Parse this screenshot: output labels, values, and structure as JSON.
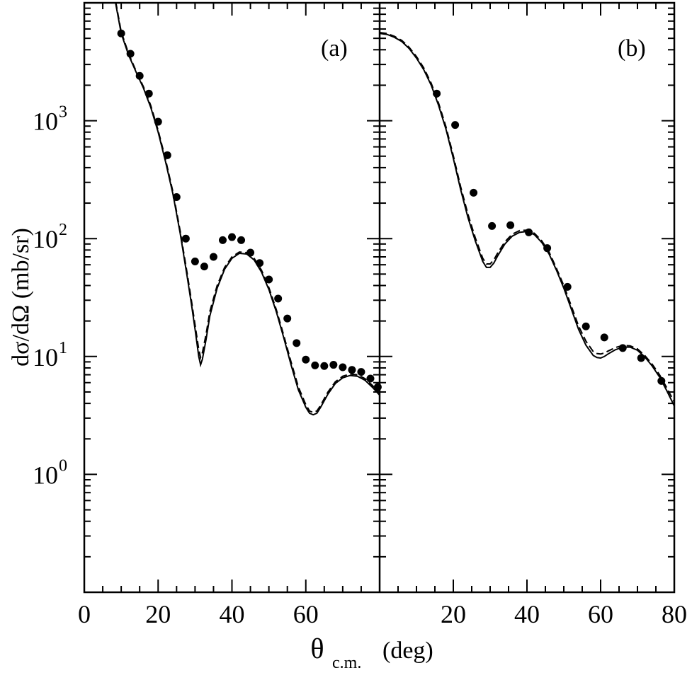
{
  "chart_data": [
    {
      "type": "scatter",
      "panel": "(a)",
      "title": "",
      "xlabel_main": "θ",
      "xlabel_sub": "c.m.",
      "xlabel_unit": "(deg)",
      "ylabel": "dσ/dΩ (mb/sr)",
      "xlim": [
        0,
        80
      ],
      "ylim": [
        0.1,
        10000
      ],
      "yscale": "log",
      "x_ticks": [
        "0",
        "20",
        "40",
        "60"
      ],
      "y_ticks": [
        {
          "base": "10",
          "exp": "0"
        },
        {
          "base": "10",
          "exp": "1"
        },
        {
          "base": "10",
          "exp": "2"
        },
        {
          "base": "10",
          "exp": "3"
        }
      ],
      "series": [
        {
          "style": "points",
          "x": [
            10,
            12.5,
            15,
            17.5,
            20,
            22.5,
            25,
            27.5,
            30,
            32.5,
            35,
            37.5,
            40,
            42.5,
            45,
            47.5,
            50,
            52.5,
            55,
            57.5,
            60,
            62.5,
            65,
            67.5,
            70,
            72.5,
            75,
            77.5,
            79.5
          ],
          "y": [
            5500,
            3700,
            2400,
            1700,
            980,
            510,
            225,
            100,
            64,
            58,
            70,
            97,
            103,
            97,
            76,
            62,
            45,
            31,
            21,
            13,
            9.4,
            8.4,
            8.3,
            8.5,
            8.1,
            7.7,
            7.4,
            6.5,
            5.5
          ]
        },
        {
          "style": "solid",
          "x": [
            8,
            10,
            12,
            14,
            16,
            18,
            20,
            22,
            24,
            26,
            28,
            29,
            30,
            31,
            31.5,
            32,
            33,
            34,
            36,
            38,
            40,
            42,
            44,
            46,
            48,
            50,
            52,
            54,
            56,
            58,
            60,
            61,
            62,
            63,
            64,
            66,
            68,
            70,
            72,
            74,
            76,
            78,
            80
          ],
          "y": [
            12000,
            5500,
            3600,
            2600,
            1900,
            1300,
            800,
            450,
            240,
            110,
            45,
            28,
            17,
            10,
            8.5,
            9.5,
            14,
            22,
            38,
            55,
            68,
            75,
            74,
            66,
            52,
            37,
            24,
            14.5,
            8.5,
            5.2,
            3.7,
            3.3,
            3.2,
            3.3,
            3.7,
            4.8,
            5.9,
            6.6,
            6.9,
            6.8,
            6.3,
            5.5,
            4.7
          ]
        },
        {
          "style": "dashed",
          "x": [
            8,
            10,
            12,
            14,
            16,
            18,
            20,
            22,
            24,
            26,
            28,
            29,
            30,
            31,
            31.5,
            32,
            33,
            34,
            36,
            38,
            40,
            42,
            44,
            46,
            48,
            50,
            52,
            54,
            56,
            58,
            60,
            61,
            62,
            63,
            64,
            66,
            68,
            70,
            72,
            74,
            76,
            78,
            80
          ],
          "y": [
            12500,
            5700,
            3700,
            2650,
            1950,
            1350,
            830,
            470,
            250,
            115,
            48,
            30,
            18.5,
            11.5,
            9.8,
            10.8,
            15.5,
            24,
            40,
            57,
            70,
            77,
            76,
            68,
            54,
            38.5,
            25,
            15.2,
            9,
            5.5,
            3.9,
            3.45,
            3.35,
            3.45,
            3.85,
            5,
            6.1,
            6.8,
            7.1,
            7,
            6.5,
            5.7,
            4.9
          ]
        }
      ]
    },
    {
      "type": "scatter",
      "panel": "(b)",
      "title": "",
      "xlim": [
        0,
        80
      ],
      "ylim": [
        0.1,
        10000
      ],
      "yscale": "log",
      "x_ticks": [
        "20",
        "40",
        "60",
        "80"
      ],
      "series": [
        {
          "style": "points",
          "x": [
            15.5,
            20.5,
            25.5,
            30.5,
            35.5,
            40.5,
            45.5,
            51,
            56,
            61,
            66,
            71,
            76.5
          ],
          "y": [
            1700,
            920,
            245,
            128,
            130,
            113,
            83,
            39,
            18,
            14.5,
            11.8,
            9.7,
            6.2
          ]
        },
        {
          "style": "solid",
          "x": [
            0,
            2,
            4,
            6,
            8,
            10,
            12,
            14,
            16,
            18,
            20,
            22,
            24,
            26,
            27,
            28,
            29,
            30,
            31,
            32,
            34,
            36,
            38,
            40,
            42,
            44,
            46,
            48,
            50,
            52,
            54,
            56,
            58,
            59,
            60,
            61,
            62,
            64,
            66,
            68,
            70,
            72,
            74,
            76,
            78,
            80
          ],
          "y": [
            5500,
            5400,
            5100,
            4700,
            4100,
            3400,
            2700,
            2000,
            1350,
            850,
            480,
            260,
            150,
            95,
            78,
            64,
            57,
            57,
            62,
            71,
            90,
            105,
            113,
            115,
            108,
            93,
            74,
            54,
            38,
            25.5,
            17,
            12.5,
            10.2,
            9.8,
            9.7,
            10,
            10.5,
            11.4,
            12,
            12,
            11.3,
            9.9,
            8.3,
            6.7,
            5.1,
            3.8
          ]
        },
        {
          "style": "dashed",
          "x": [
            0,
            2,
            4,
            6,
            8,
            10,
            12,
            14,
            16,
            18,
            20,
            22,
            24,
            26,
            27,
            28,
            29,
            30,
            31,
            32,
            34,
            36,
            38,
            40,
            42,
            44,
            46,
            48,
            50,
            52,
            54,
            56,
            58,
            59,
            60,
            61,
            62,
            64,
            66,
            68,
            70,
            72,
            74,
            76,
            78,
            80
          ],
          "y": [
            5600,
            5500,
            5200,
            4800,
            4200,
            3500,
            2800,
            2080,
            1410,
            890,
            505,
            275,
            160,
            101,
            83,
            68,
            61,
            61,
            66,
            75,
            94,
            109,
            117,
            118,
            111,
            96,
            77,
            56,
            40,
            27,
            18.2,
            13.5,
            11,
            10.6,
            10.5,
            10.7,
            11.1,
            11.9,
            12.4,
            12.3,
            11.6,
            10.2,
            8.6,
            7,
            5.4,
            4.1
          ]
        }
      ]
    }
  ]
}
